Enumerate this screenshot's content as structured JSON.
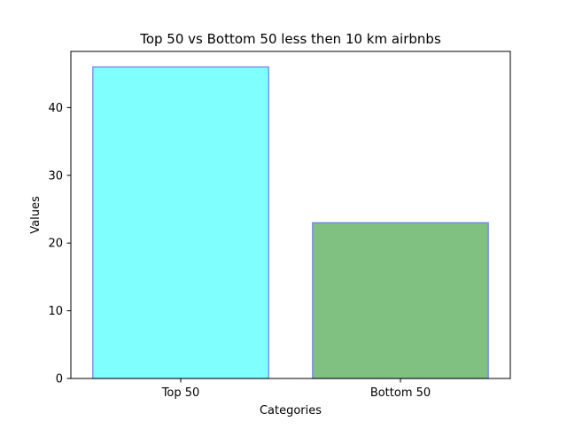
{
  "chart_data": {
    "type": "bar",
    "title": "Top 50 vs Bottom 50 less then 10 km airbnbs",
    "xlabel": "Categories",
    "ylabel": "Values",
    "categories": [
      "Top 50",
      "Bottom 50"
    ],
    "values": [
      46,
      23
    ],
    "ylim": [
      0,
      48.3
    ],
    "yticks": [
      0,
      10,
      20,
      30,
      40
    ],
    "grid": false,
    "legend": "none",
    "bar_colors": [
      "#80ffff",
      "#80c080"
    ],
    "bar_edge_color": "#6a7fe8"
  }
}
